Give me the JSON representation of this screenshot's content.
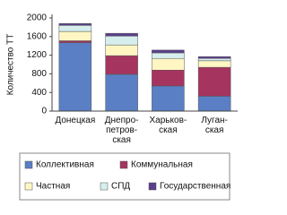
{
  "chart_data": {
    "type": "stacked_bar",
    "y_label": "Количество ТТ",
    "categories": [
      "Донецкая",
      "Днепро-\nпетров-\nская",
      "Харьков-\nская",
      "Луган-\nская"
    ],
    "series": [
      {
        "name": "Коллективная",
        "color": "#5b7fc4",
        "values": [
          1470,
          790,
          540,
          320
        ]
      },
      {
        "name": "Коммунальная",
        "color": "#a5345e",
        "values": [
          40,
          400,
          340,
          620
        ]
      },
      {
        "name": "Частная",
        "color": "#fff6c4",
        "values": [
          200,
          230,
          250,
          140
        ]
      },
      {
        "name": "СПД",
        "color": "#d6eeee",
        "values": [
          130,
          190,
          120,
          50
        ]
      },
      {
        "name": "Государственная",
        "color": "#5b3f8c",
        "values": [
          40,
          60,
          60,
          40
        ]
      }
    ],
    "ylim": [
      0,
      2000
    ],
    "yticks": [
      0,
      400,
      800,
      1200,
      1600,
      2000
    ]
  }
}
